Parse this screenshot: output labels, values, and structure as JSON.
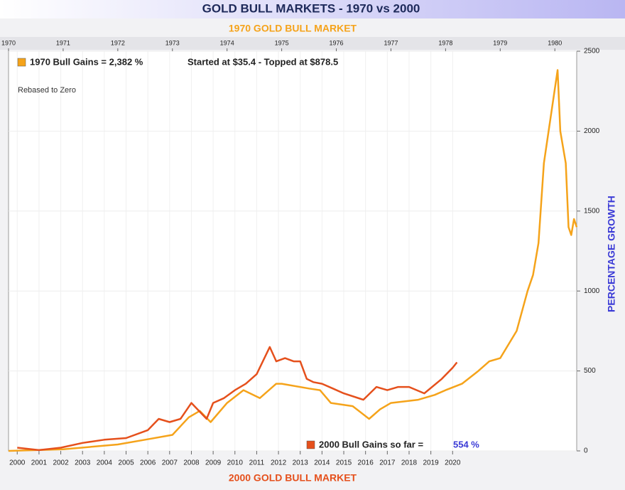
{
  "chart_data": {
    "type": "line",
    "title": "GOLD BULL MARKETS - 1970 vs 2000",
    "x2_label": "1970 GOLD BULL MARKET",
    "x_label": "2000 GOLD BULL MARKET",
    "y_label": "PERCENTAGE GROWTH",
    "annotations": [
      "Started at $35.4 - Topped at $878.5",
      "Rebased to Zero",
      "554 %"
    ],
    "xlim": [
      1999.6,
      2025.7
    ],
    "xticks": [
      2000,
      2001,
      2002,
      2003,
      2004,
      2005,
      2006,
      2007,
      2008,
      2009,
      2010,
      2011,
      2012,
      2013,
      2014,
      2015,
      2016,
      2017,
      2018,
      2019,
      2020
    ],
    "x2lim": [
      1970,
      1980.4
    ],
    "x2ticks": [
      1970,
      1971,
      1972,
      1973,
      1974,
      1975,
      1976,
      1977,
      1978,
      1979,
      1980
    ],
    "ylim": [
      0,
      2500
    ],
    "yticks": [
      0,
      500,
      1000,
      1500,
      2000,
      2500
    ],
    "grid": true,
    "series": [
      {
        "name": "1970 Bull Gains = 2,382 %",
        "color": "#f5a31a",
        "axis": "x2",
        "x": [
          1970.0,
          1971.0,
          1972.0,
          1972.5,
          1973.0,
          1973.3,
          1973.5,
          1973.7,
          1974.0,
          1974.3,
          1974.6,
          1974.9,
          1975.0,
          1975.5,
          1975.7,
          1975.9,
          1976.3,
          1976.6,
          1976.8,
          1977.0,
          1977.5,
          1977.8,
          1978.0,
          1978.3,
          1978.6,
          1978.8,
          1979.0,
          1979.3,
          1979.5,
          1979.6,
          1979.7,
          1979.8,
          1980.05,
          1980.1,
          1980.2,
          1980.25,
          1980.3,
          1980.35,
          1980.4
        ],
        "values": [
          0,
          10,
          40,
          70,
          100,
          210,
          250,
          180,
          300,
          380,
          330,
          420,
          420,
          390,
          380,
          300,
          280,
          200,
          260,
          300,
          320,
          350,
          380,
          420,
          500,
          560,
          580,
          750,
          1000,
          1100,
          1300,
          1800,
          2382,
          2000,
          1800,
          1400,
          1350,
          1450,
          1400
        ]
      },
      {
        "name": "2000 Bull Gains so far =",
        "color": "#e5501c",
        "x": [
          2000.0,
          2001.0,
          2002.0,
          2003.0,
          2004.0,
          2005.0,
          2006.0,
          2006.5,
          2007.0,
          2007.5,
          2008.0,
          2008.7,
          2009.0,
          2009.5,
          2010.0,
          2010.5,
          2011.0,
          2011.6,
          2011.9,
          2012.3,
          2012.7,
          2013.0,
          2013.3,
          2013.6,
          2014.0,
          2014.5,
          2015.0,
          2015.9,
          2016.5,
          2017.0,
          2017.5,
          2018.0,
          2018.7,
          2019.5,
          2020.0,
          2020.2
        ],
        "values": [
          20,
          5,
          20,
          50,
          70,
          80,
          130,
          200,
          180,
          200,
          300,
          200,
          300,
          330,
          380,
          420,
          480,
          650,
          560,
          580,
          560,
          560,
          450,
          430,
          420,
          390,
          360,
          320,
          400,
          380,
          400,
          400,
          360,
          450,
          520,
          554
        ]
      }
    ]
  }
}
